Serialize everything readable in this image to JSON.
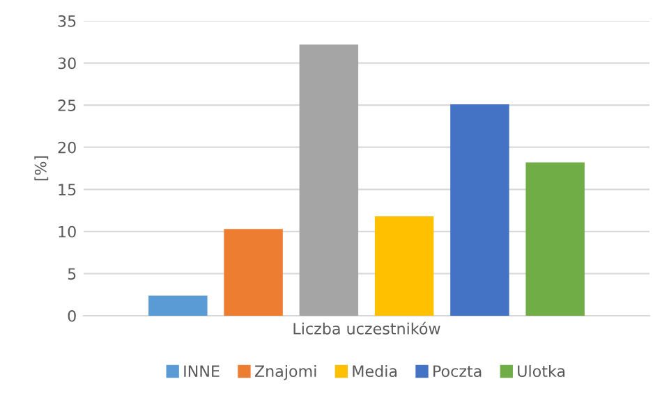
{
  "chart_data": {
    "type": "bar",
    "ylabel": "[%]",
    "categories": [
      "Liczba uczestników"
    ],
    "series": [
      {
        "name": "INNE",
        "color": "#5b9bd5",
        "values": [
          2.4
        ]
      },
      {
        "name": "Znajomi",
        "color": "#ed7d31",
        "values": [
          10.3
        ]
      },
      {
        "color": "#a5a5a5",
        "values": [
          32.2
        ]
      },
      {
        "name": "Media",
        "color": "#ffc000",
        "values": [
          11.8
        ]
      },
      {
        "name": "Poczta",
        "color": "#4472c4",
        "values": [
          25.1
        ]
      },
      {
        "name": "Ulotka",
        "color": "#70ad47",
        "values": [
          18.2
        ]
      }
    ],
    "ylim": [
      0,
      35
    ],
    "yticks": [
      0,
      5,
      10,
      15,
      20,
      25,
      30,
      35
    ],
    "grid": "y",
    "legend": "bottom"
  }
}
